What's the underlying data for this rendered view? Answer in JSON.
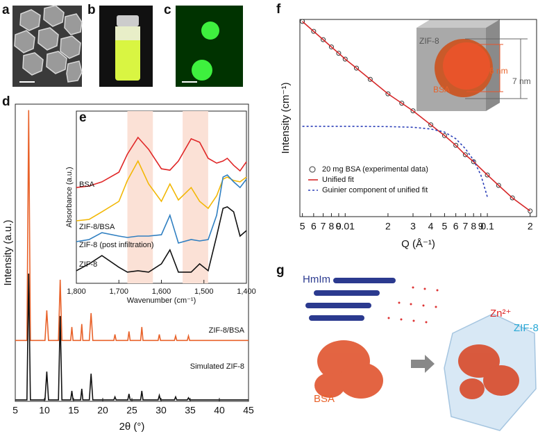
{
  "panel_labels": [
    "a",
    "b",
    "c",
    "d",
    "e",
    "f",
    "g"
  ],
  "chart_data": [
    {
      "type": "line",
      "xlabel": "2θ (°)",
      "ylabel": "Intensity (a.u.)",
      "x": [
        5,
        7.0,
        7.3,
        7.6,
        10.1,
        10.4,
        10.7,
        12.4,
        12.7,
        13.0,
        14.5,
        14.7,
        14.9,
        16.2,
        16.4,
        16.6,
        17.7,
        18.0,
        18.3,
        21.9,
        22.1,
        22.3,
        24.3,
        24.5,
        24.7,
        26.5,
        26.7,
        26.9,
        29.5,
        29.7,
        29.9,
        32.3,
        32.5,
        32.7,
        34.5,
        34.7,
        34.9,
        45
      ],
      "series": [
        {
          "name": "ZIF-8/BSA",
          "color": "#e8622a",
          "values": [
            20.5,
            20.5,
            98,
            20.5,
            20.5,
            30.6,
            20.5,
            20.5,
            40.9,
            20.5,
            20.5,
            25,
            20.5,
            20.5,
            26,
            20.5,
            20.5,
            29.7,
            20.5,
            20.5,
            22.5,
            20.5,
            20.5,
            23.5,
            20.5,
            20.5,
            25,
            20.5,
            20.5,
            22.5,
            20.5,
            20.5,
            22,
            20.5,
            20.5,
            22,
            20.5,
            20.5
          ]
        },
        {
          "name": "Simulated ZIF-8",
          "color": "#111111",
          "values": [
            0.5,
            0.5,
            43,
            0.5,
            0.5,
            10,
            0.5,
            0.5,
            28.7,
            0.5,
            0.5,
            3.5,
            0.5,
            0.5,
            4.2,
            0.5,
            0.5,
            9.3,
            0.5,
            0.5,
            1.5,
            0.5,
            0.5,
            2.5,
            0.5,
            0.5,
            3.5,
            0.5,
            0.5,
            2,
            0.5,
            0.5,
            1.5,
            0.5,
            0.5,
            1.2,
            0.5,
            0.5
          ]
        }
      ],
      "xlim": [
        5,
        45
      ],
      "xticks": [
        5,
        10,
        15,
        20,
        25,
        30,
        35,
        40,
        45
      ],
      "ylim": [
        0,
        100
      ]
    },
    {
      "type": "line",
      "xlabel": "Wavenumber (cm⁻¹)",
      "ylabel": "Absorbance (a.u.)",
      "x": [
        1800,
        1770,
        1740,
        1700,
        1680,
        1655,
        1630,
        1600,
        1580,
        1560,
        1530,
        1510,
        1490,
        1470,
        1455,
        1445,
        1430,
        1415,
        1400
      ],
      "highlight_ranges": [
        [
          1680,
          1620
        ],
        [
          1550,
          1490
        ]
      ],
      "series": [
        {
          "name": "BSA",
          "color": "#e02727",
          "values": [
            55.6,
            56.5,
            58.9,
            64.5,
            75,
            84.7,
            77.8,
            66.5,
            65.7,
            71,
            83.9,
            81.9,
            72.6,
            69.8,
            71,
            72.6,
            68.5,
            65.3,
            70.6
          ]
        },
        {
          "name": "ZIF-8/BSA",
          "color": "#f2b705",
          "values": [
            36.3,
            37.1,
            41.5,
            47.6,
            59.7,
            71,
            57.7,
            47.6,
            57.7,
            48.4,
            55.6,
            47.6,
            43.5,
            50.8,
            60.5,
            61.7,
            59.7,
            58.9,
            61.7
          ]
        },
        {
          "name": "ZIF-8 (post infiltration)",
          "color": "#2f7fc1",
          "values": [
            24.2,
            25.4,
            29.4,
            27.4,
            26.6,
            27.4,
            27.4,
            28.2,
            39.5,
            23.4,
            25.4,
            24.6,
            25.4,
            39.5,
            61.7,
            62.9,
            58.9,
            55.6,
            60.5
          ]
        },
        {
          "name": "ZIF-8",
          "color": "#111111",
          "values": [
            7.3,
            11.3,
            16.1,
            9.3,
            6.5,
            7.3,
            6.5,
            11.3,
            19.4,
            6.5,
            6.5,
            11.3,
            7.3,
            27.4,
            43.5,
            44.4,
            41.5,
            27.4,
            30.6
          ]
        }
      ],
      "xlim": [
        1800,
        1400
      ],
      "xticks": [
        {
          "value": 1800,
          "label": "1,800"
        },
        {
          "value": 1700,
          "label": "1,700"
        },
        {
          "value": 1600,
          "label": "1,600"
        },
        {
          "value": 1500,
          "label": "1,500"
        },
        {
          "value": 1400,
          "label": "1,400"
        }
      ],
      "ylim": [
        0,
        100
      ]
    },
    {
      "type": "line",
      "xlabel": "Q (Å⁻¹)",
      "ylabel": "Intensity (cm⁻¹)",
      "xscale": "log",
      "yscale": "log",
      "legend": "lower left",
      "series": [
        {
          "name": "20 mg BSA (experimental data)",
          "color": "#333333",
          "marker": "circle",
          "x": [
            0.005,
            0.006,
            0.007,
            0.008,
            0.009,
            0.01,
            0.012,
            0.015,
            0.02,
            0.025,
            0.03,
            0.04,
            0.05,
            0.06,
            0.07,
            0.08,
            0.1,
            0.12,
            0.15,
            0.2
          ],
          "values": [
            9100,
            5740,
            3890,
            2770,
            2060,
            1570,
            1030,
            610,
            310,
            200,
            140,
            73,
            44,
            28,
            18,
            13,
            7,
            4.3,
            2.4,
            1.3
          ]
        },
        {
          "name": "Unified fit",
          "color": "#d62728",
          "x": [
            0.005,
            0.006,
            0.007,
            0.008,
            0.009,
            0.01,
            0.012,
            0.015,
            0.02,
            0.025,
            0.03,
            0.04,
            0.05,
            0.06,
            0.07,
            0.08,
            0.1,
            0.12,
            0.15,
            0.2
          ],
          "values": [
            9100,
            5740,
            3890,
            2770,
            2060,
            1570,
            1030,
            610,
            310,
            200,
            140,
            73,
            44,
            28,
            18,
            13,
            7,
            4.3,
            2.4,
            1.3
          ]
        },
        {
          "name": "Guinier component of unified fit",
          "color": "#2b3fb8",
          "dash": true,
          "x": [
            0.005,
            0.01,
            0.02,
            0.03,
            0.04,
            0.05,
            0.06,
            0.07,
            0.08,
            0.09,
            0.1
          ],
          "values": [
            68,
            68,
            67,
            65,
            60,
            52,
            38,
            24,
            14,
            7,
            2.5
          ]
        }
      ],
      "xlim": [
        0.0048,
        0.222
      ],
      "ylim": [
        1,
        10000
      ],
      "xticks": [
        {
          "value": 0.005,
          "label": "5"
        },
        {
          "value": 0.006,
          "label": "6"
        },
        {
          "value": 0.007,
          "label": "7"
        },
        {
          "value": 0.008,
          "label": "8"
        },
        {
          "value": 0.009,
          "label": "9"
        },
        0.01,
        {
          "value": 0.02,
          "label": "2"
        },
        {
          "value": 0.03,
          "label": "3"
        },
        {
          "value": 0.04,
          "label": "4"
        },
        {
          "value": 0.05,
          "label": "5"
        },
        {
          "value": 0.06,
          "label": "6"
        },
        {
          "value": 0.07,
          "label": "7"
        },
        {
          "value": 0.08,
          "label": "8"
        },
        {
          "value": 0.09,
          "label": "9"
        },
        0.1,
        {
          "value": 0.2,
          "label": "2"
        }
      ]
    }
  ],
  "f_inset": {
    "labels": [
      "ZIF-8",
      "BSA",
      "6 nm",
      "7 nm"
    ]
  },
  "g_diagram": {
    "labels": [
      "HmIm",
      "Zn²⁺",
      "BSA",
      "ZIF-8"
    ]
  }
}
